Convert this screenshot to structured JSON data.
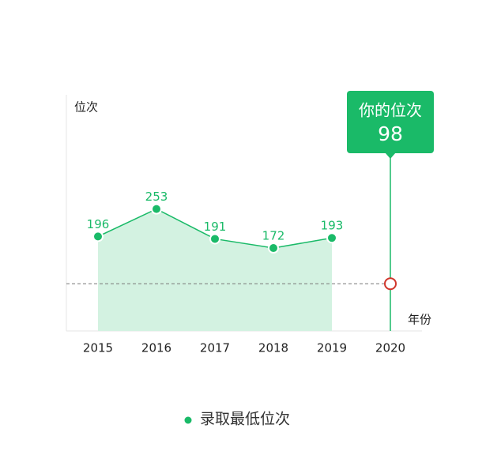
{
  "chart_data": {
    "type": "line",
    "y_label": "位次",
    "x_label": "年份",
    "categories": [
      "2015",
      "2016",
      "2017",
      "2018",
      "2019",
      "2020"
    ],
    "series": [
      {
        "name": "录取最低位次",
        "color": "#1aba68",
        "values": [
          196,
          253,
          191,
          172,
          193,
          null
        ]
      }
    ],
    "highlight": {
      "title": "你的位次",
      "value": 98,
      "color": "#d0352b"
    },
    "ylim": [
      0,
      490
    ]
  }
}
